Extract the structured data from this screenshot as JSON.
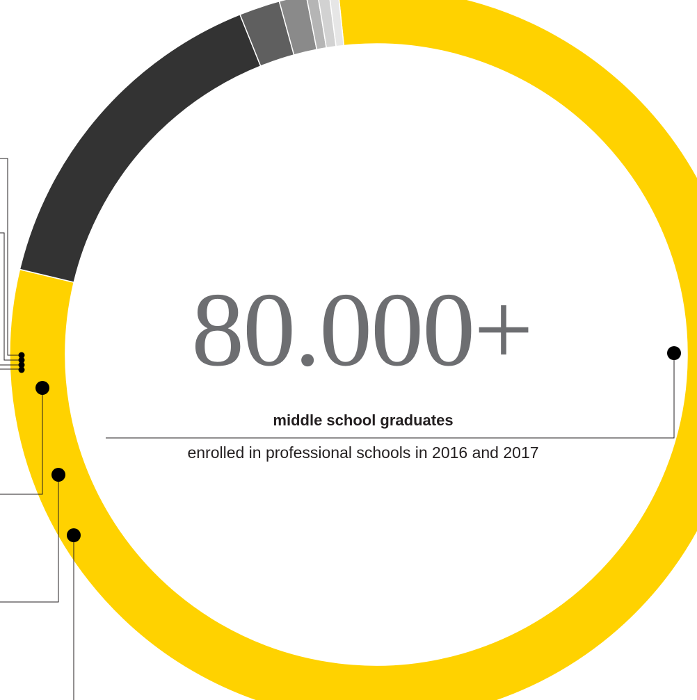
{
  "headline": {
    "value": "80.000+",
    "subtitle_bold": "middle school graduates",
    "subtitle": "enrolled in professional schools in 2016 and 2017"
  },
  "chart_data": {
    "type": "pie",
    "variant": "donut",
    "values": [
      80.4,
      15.2,
      1.8,
      1.2,
      0.5,
      0.5,
      0.4
    ],
    "colors": [
      "#ffd200",
      "#333333",
      "#5f5f5f",
      "#8a8a8a",
      "#b5b5b5",
      "#d2d2d2",
      "#e6e6e6"
    ],
    "title": "",
    "legend": "none"
  }
}
